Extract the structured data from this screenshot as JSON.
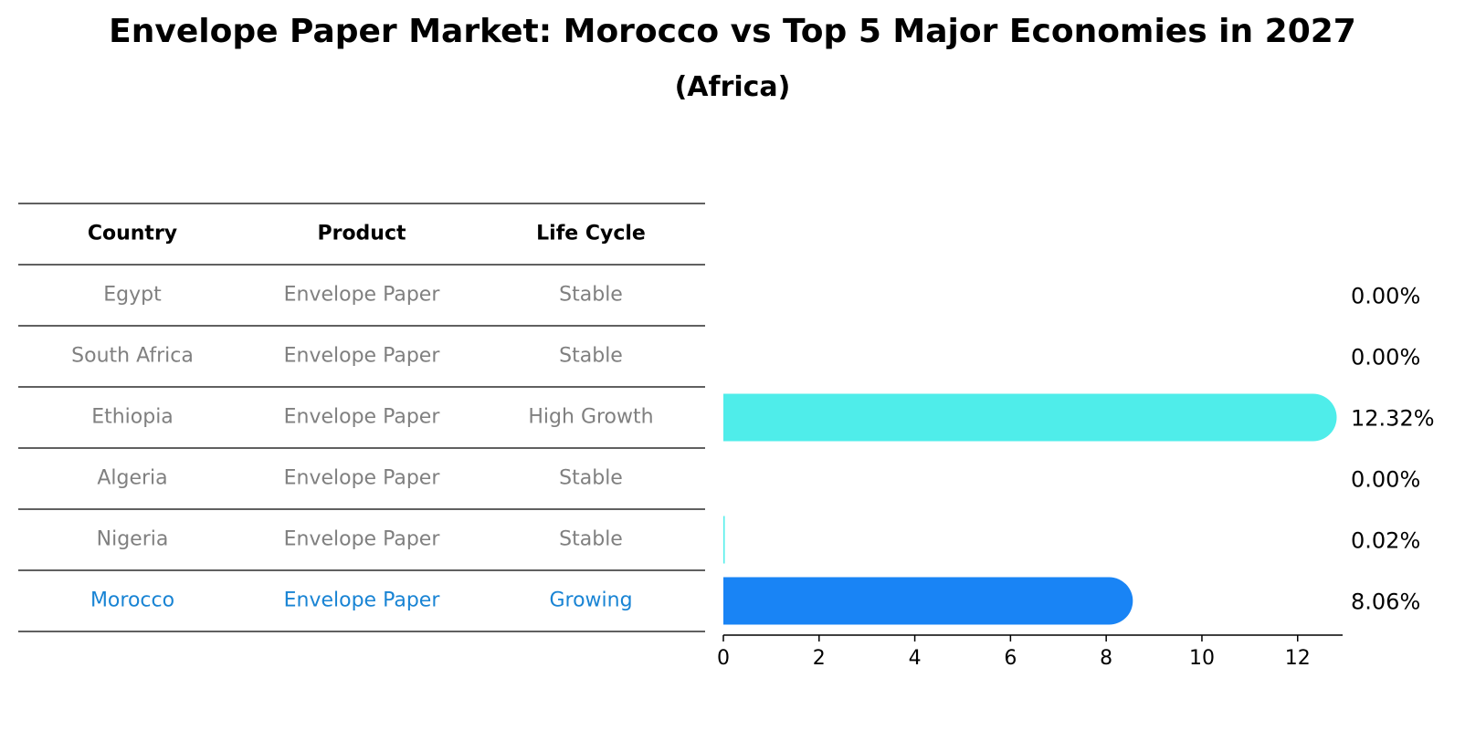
{
  "chart_data": {
    "type": "bar",
    "orientation": "horizontal",
    "title": "Envelope Paper Market: Morocco vs Top 5 Major Economies in 2027",
    "subtitle": "(Africa)",
    "table": {
      "columns": [
        "Country",
        "Product",
        "Life Cycle"
      ],
      "rows": [
        {
          "country": "Egypt",
          "product": "Envelope Paper",
          "life_cycle": "Stable"
        },
        {
          "country": "South Africa",
          "product": "Envelope Paper",
          "life_cycle": "Stable"
        },
        {
          "country": "Ethiopia",
          "product": "Envelope Paper",
          "life_cycle": "High Growth"
        },
        {
          "country": "Algeria",
          "product": "Envelope Paper",
          "life_cycle": "Stable"
        },
        {
          "country": "Nigeria",
          "product": "Envelope Paper",
          "life_cycle": "Stable"
        },
        {
          "country": "Morocco",
          "product": "Envelope Paper",
          "life_cycle": "Growing"
        }
      ]
    },
    "categories": [
      "Egypt",
      "South Africa",
      "Ethiopia",
      "Algeria",
      "Nigeria",
      "Morocco"
    ],
    "values": [
      0.0,
      0.0,
      12.32,
      0.0,
      0.02,
      8.06
    ],
    "value_labels": [
      "0.00%",
      "0.00%",
      "12.32%",
      "0.00%",
      "0.02%",
      "8.06%"
    ],
    "highlight": "Morocco",
    "xlim": [
      0,
      12.94
    ],
    "xticks": [
      0,
      2,
      4,
      6,
      8,
      10,
      12
    ],
    "colors": {
      "bar": "#4FEDEA",
      "highlight_bar": "#1984F5",
      "highlight_text": "#1984D4",
      "text_muted": "#808080"
    }
  }
}
